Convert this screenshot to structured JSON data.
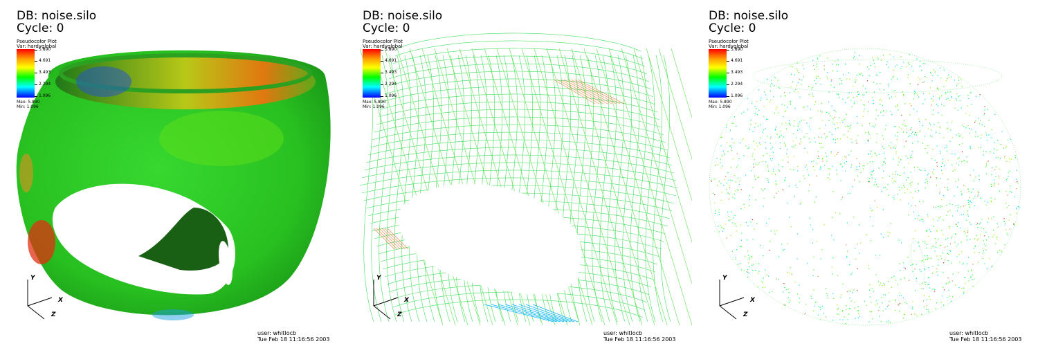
{
  "panels": [
    {
      "mode": "surface",
      "db_title": "DB: noise.silo",
      "cycle": "Cycle: 0",
      "legend": {
        "title": "Pseudocolor Plot",
        "var": "Var: hardyglobal",
        "ticks": [
          "5.890",
          "4.691",
          "3.493",
          "2.294",
          "1.096"
        ],
        "max": "Max: 5.890",
        "min": "Min: 1.096"
      },
      "axes": {
        "y": "Y",
        "x": "X",
        "z": "Z"
      },
      "user": "user: whitlocb",
      "date": "Tue Feb 18 11:16:56 2003"
    },
    {
      "mode": "wireframe",
      "db_title": "DB: noise.silo",
      "cycle": "Cycle: 0",
      "legend": {
        "title": "Pseudocolor Plot",
        "var": "Var: hardyglobal",
        "ticks": [
          "5.890",
          "4.691",
          "3.493",
          "2.294",
          "1.096"
        ],
        "max": "Max: 5.890",
        "min": "Min: 1.096"
      },
      "axes": {
        "y": "Y",
        "x": "X",
        "z": "Z"
      },
      "user": "user: whitlocb",
      "date": "Tue Feb 18 11:16:56 2003"
    },
    {
      "mode": "points",
      "db_title": "DB: noise.silo",
      "cycle": "Cycle: 0",
      "legend": {
        "title": "Pseudocolor Plot",
        "var": "Var: hardyglobal",
        "ticks": [
          "5.890",
          "4.691",
          "3.493",
          "2.294",
          "1.096"
        ],
        "max": "Max: 5.890",
        "min": "Min: 1.096"
      },
      "axes": {
        "y": "Y",
        "x": "X",
        "z": "Z"
      },
      "user": "user: whitlocb",
      "date": "Tue Feb 18 11:16:56 2003"
    }
  ],
  "colors": {
    "max_color": "#ff0000",
    "mid_color": "#00ff00",
    "min_color": "#0000ff",
    "background": "#ffffff"
  }
}
